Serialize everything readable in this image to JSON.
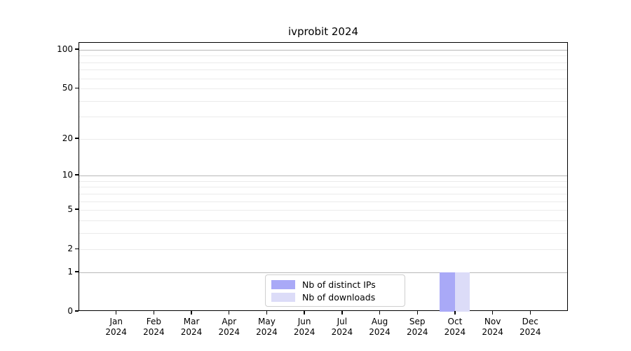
{
  "chart_data": {
    "type": "bar",
    "title": "ivprobit 2024",
    "categories": [
      {
        "month": "Jan",
        "year": "2024"
      },
      {
        "month": "Feb",
        "year": "2024"
      },
      {
        "month": "Mar",
        "year": "2024"
      },
      {
        "month": "Apr",
        "year": "2024"
      },
      {
        "month": "May",
        "year": "2024"
      },
      {
        "month": "Jun",
        "year": "2024"
      },
      {
        "month": "Jul",
        "year": "2024"
      },
      {
        "month": "Aug",
        "year": "2024"
      },
      {
        "month": "Sep",
        "year": "2024"
      },
      {
        "month": "Oct",
        "year": "2024"
      },
      {
        "month": "Nov",
        "year": "2024"
      },
      {
        "month": "Dec",
        "year": "2024"
      }
    ],
    "series": [
      {
        "name": "Nb of distinct IPs",
        "color": "#a9a9f7",
        "values": [
          0,
          0,
          0,
          0,
          0,
          0,
          0,
          0,
          0,
          1,
          0,
          0
        ]
      },
      {
        "name": "Nb of downloads",
        "color": "#dcdcf8",
        "values": [
          0,
          0,
          0,
          0,
          0,
          0,
          0,
          0,
          0,
          1,
          0,
          0
        ]
      }
    ],
    "xlabel": "",
    "ylabel": "",
    "y_axis": {
      "scale": "log1p",
      "ticks": [
        0,
        1,
        2,
        5,
        10,
        20,
        50,
        100
      ],
      "ylim": [
        0,
        113
      ],
      "emphasized_gridlines": [
        1,
        10,
        100
      ],
      "light_gridlines": [
        2,
        3,
        4,
        5,
        6,
        7,
        8,
        9,
        20,
        30,
        40,
        50,
        60,
        70,
        80,
        90
      ]
    },
    "grid": true,
    "legend_position": "bottom-center",
    "colors": {
      "grid_major": "#b8b8b8",
      "grid_minor": "#ebebeb",
      "axis": "#000000",
      "background": "#ffffff"
    }
  }
}
